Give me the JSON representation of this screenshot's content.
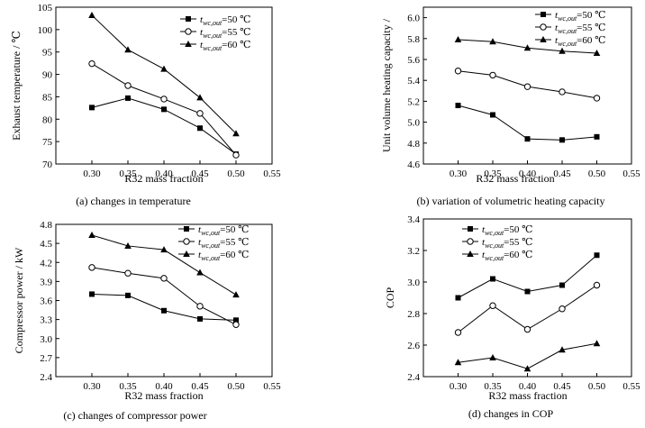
{
  "figure": {
    "legend_labels": [
      {
        "sym": "t",
        "sub": "wc,out",
        "rest": "=50 ℃"
      },
      {
        "sym": "t",
        "sub": "wc,out",
        "rest": "=55 ℃"
      },
      {
        "sym": "t",
        "sub": "wc,out",
        "rest": "=60 ℃"
      }
    ]
  },
  "chart_data": [
    {
      "type": "line",
      "caption": "(a) changes in temperature",
      "xlabel": "R32 mass fraction",
      "ylabel": "Exhaust temperature / ℃",
      "xlim": [
        0.25,
        0.55
      ],
      "ylim": [
        70,
        105
      ],
      "xticks": [
        "0.30",
        "0.35",
        "0.40",
        "0.45",
        "0.50",
        "0.55"
      ],
      "yticks": [
        "70",
        "75",
        "80",
        "85",
        "90",
        "95",
        "100",
        "105"
      ],
      "x": [
        0.3,
        0.35,
        0.4,
        0.45,
        0.5
      ],
      "series": [
        {
          "name": "t_wc,out=50 ℃",
          "marker": "square",
          "values": [
            82.6,
            84.7,
            82.2,
            78.0,
            72.2
          ]
        },
        {
          "name": "t_wc,out=55 ℃",
          "marker": "circle",
          "values": [
            92.4,
            87.5,
            84.5,
            81.3,
            72.0
          ]
        },
        {
          "name": "t_wc,out=60 ℃",
          "marker": "triangle",
          "values": [
            103.2,
            95.5,
            91.2,
            84.8,
            76.8
          ]
        }
      ],
      "legend": "top-right",
      "grid": false
    },
    {
      "type": "line",
      "caption": "(b) variation of volumetric heating capacity",
      "xlabel": "R32 mass fraction",
      "ylabel": "Unit volume heating capacity /",
      "xlim": [
        0.25,
        0.55
      ],
      "ylim": [
        4.6,
        6.1
      ],
      "xticks": [
        "0.30",
        "0.35",
        "0.40",
        "0.45",
        "0.50",
        "0.55"
      ],
      "yticks": [
        "4.6",
        "4.8",
        "5.0",
        "5.2",
        "5.4",
        "5.6",
        "5.8",
        "6.0"
      ],
      "x": [
        0.3,
        0.35,
        0.4,
        0.45,
        0.5
      ],
      "series": [
        {
          "name": "t_wc,out=50 ℃",
          "marker": "square",
          "values": [
            5.16,
            5.07,
            4.84,
            4.83,
            4.86
          ]
        },
        {
          "name": "t_wc,out=55 ℃",
          "marker": "circle",
          "values": [
            5.49,
            5.45,
            5.34,
            5.29,
            5.23
          ]
        },
        {
          "name": "t_wc,out=60 ℃",
          "marker": "triangle",
          "values": [
            5.79,
            5.77,
            5.71,
            5.68,
            5.66
          ]
        }
      ],
      "legend": "top-right",
      "grid": false
    },
    {
      "type": "line",
      "caption": "(c) changes of compressor power",
      "xlabel": "R32 mass fraction",
      "ylabel": "Compressor power / kW",
      "xlim": [
        0.25,
        0.55
      ],
      "ylim": [
        2.4,
        4.8
      ],
      "xticks": [
        "0.30",
        "0.35",
        "0.40",
        "0.45",
        "0.50",
        "0.55"
      ],
      "yticks": [
        "2.4",
        "2.7",
        "3.0",
        "3.3",
        "3.6",
        "3.9",
        "4.2",
        "4.5",
        "4.8"
      ],
      "x": [
        0.3,
        0.35,
        0.4,
        0.45,
        0.5
      ],
      "series": [
        {
          "name": "t_wc,out=50 ℃",
          "marker": "square",
          "values": [
            3.7,
            3.68,
            3.44,
            3.31,
            3.29
          ]
        },
        {
          "name": "t_wc,out=55 ℃",
          "marker": "circle",
          "values": [
            4.12,
            4.03,
            3.95,
            3.51,
            3.22
          ]
        },
        {
          "name": "t_wc,out=60 ℃",
          "marker": "triangle",
          "values": [
            4.63,
            4.46,
            4.4,
            4.04,
            3.69
          ]
        }
      ],
      "legend": "top-right",
      "grid": false
    },
    {
      "type": "line",
      "caption": "(d) changes in COP",
      "xlabel": "R32 mass fraction",
      "ylabel": "COP",
      "xlim": [
        0.25,
        0.55
      ],
      "ylim": [
        2.4,
        3.4
      ],
      "xticks": [
        "0.30",
        "0.35",
        "0.40",
        "0.45",
        "0.50",
        "0.55"
      ],
      "yticks": [
        "2.4",
        "2.6",
        "2.8",
        "3.0",
        "3.2",
        "3.4"
      ],
      "x": [
        0.3,
        0.35,
        0.4,
        0.45,
        0.5
      ],
      "series": [
        {
          "name": "t_wc,out=50 ℃",
          "marker": "square",
          "values": [
            2.9,
            3.02,
            2.94,
            2.98,
            3.17
          ]
        },
        {
          "name": "t_wc,out=55 ℃",
          "marker": "circle",
          "values": [
            2.68,
            2.85,
            2.7,
            2.83,
            2.98
          ]
        },
        {
          "name": "t_wc,out=60 ℃",
          "marker": "triangle",
          "values": [
            2.49,
            2.52,
            2.45,
            2.57,
            2.61
          ]
        }
      ],
      "legend": "top-right",
      "grid": false
    }
  ]
}
